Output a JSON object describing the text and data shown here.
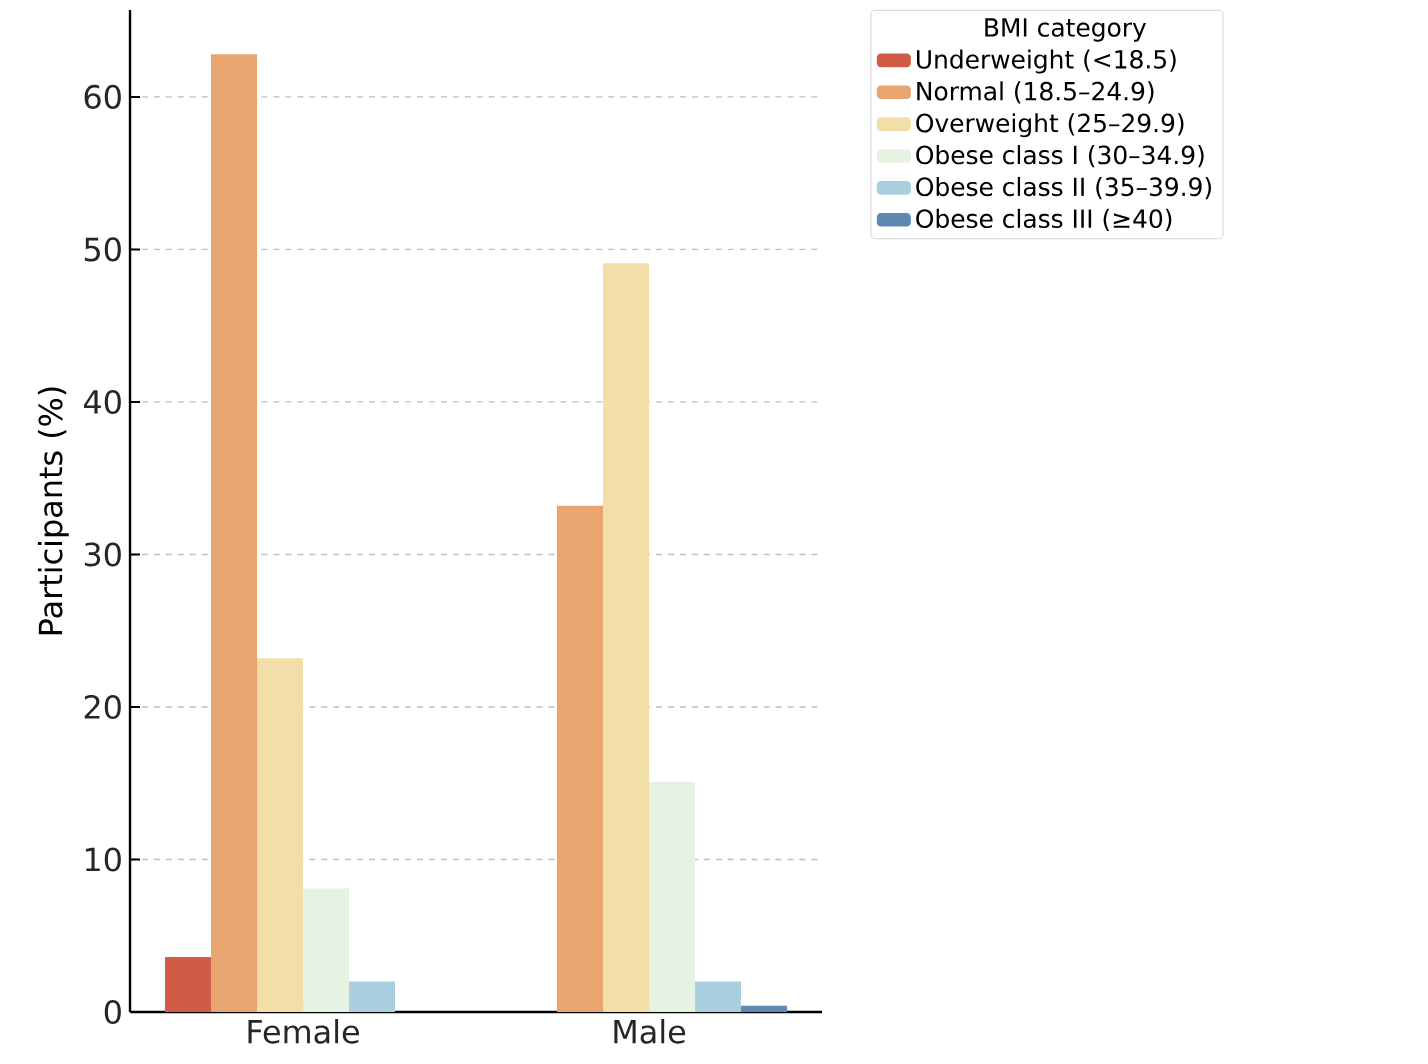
{
  "chart_data": {
    "type": "bar",
    "ylabel": "Participants (%)",
    "legend_title": "BMI category",
    "categories": [
      "Female",
      "Male"
    ],
    "series": [
      {
        "name": "Underweight (<18.5)",
        "color": "#d05c48",
        "values": [
          3.6,
          0
        ]
      },
      {
        "name": "Normal (18.5–24.9)",
        "color": "#e8a56f",
        "values": [
          62.8,
          33.2
        ]
      },
      {
        "name": "Overweight (25–29.9)",
        "color": "#f2dfa7",
        "values": [
          23.2,
          49.1
        ]
      },
      {
        "name": "Obese class I (30–34.9)",
        "color": "#e6f2e2",
        "values": [
          8.1,
          15.1
        ]
      },
      {
        "name": "Obese class II (35–39.9)",
        "color": "#a9cfdf",
        "values": [
          2.0,
          2.0
        ]
      },
      {
        "name": "Obese class III (≥40)",
        "color": "#5f89b3",
        "values": [
          0,
          0.4
        ]
      }
    ],
    "ylim": [
      0,
      65.7
    ],
    "yticks": [
      0,
      10,
      20,
      30,
      40,
      50,
      60
    ],
    "grid": "y",
    "legend": "top right"
  }
}
